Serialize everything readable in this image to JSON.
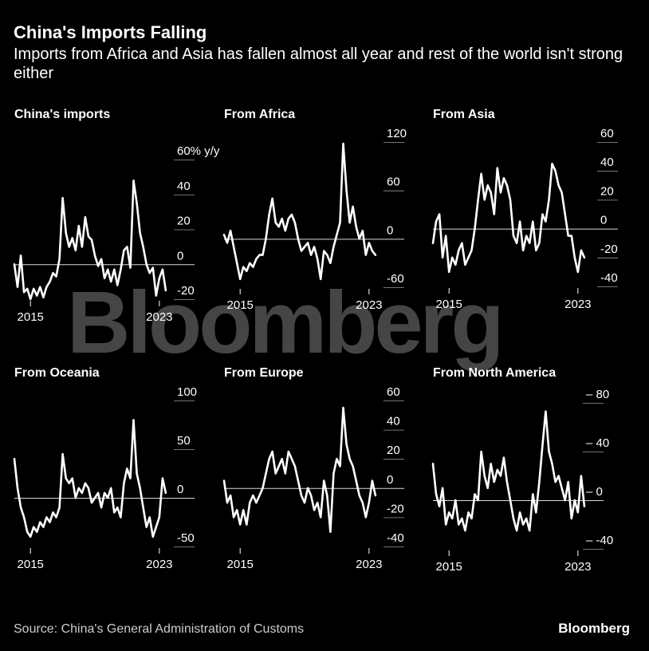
{
  "header": {
    "title": "China's Imports Falling",
    "subtitle": "Imports from Africa and Asia has fallen almost all year and rest of the world isn't strong either"
  },
  "footer": {
    "source": "Source: China's General Administration of Customs",
    "brand": "Bloomberg"
  },
  "watermark": "Bloomberg",
  "colors": {
    "background": "#000000",
    "line": "#ffffff",
    "grid": "#ffffff",
    "text": "#ffffff"
  },
  "chart_data": [
    {
      "type": "line",
      "title": "China's imports",
      "yunit": "% y/y",
      "yticks": [
        {
          "v": 60,
          "label": "60% y/y"
        },
        {
          "v": 40,
          "label": "40"
        },
        {
          "v": 20,
          "label": "20"
        },
        {
          "v": 0,
          "label": "0"
        },
        {
          "v": -20,
          "label": "-20"
        }
      ],
      "ylim": [
        -30,
        65
      ],
      "xlim": [
        2014.0,
        2023.75
      ],
      "xticks": [
        {
          "v": 2015,
          "label": "2015"
        },
        {
          "v": 2023,
          "label": "2023"
        }
      ],
      "x": [
        2014.0,
        2014.2,
        2014.4,
        2014.6,
        2014.8,
        2015.0,
        2015.2,
        2015.4,
        2015.6,
        2015.8,
        2016.0,
        2016.2,
        2016.4,
        2016.6,
        2016.8,
        2017.0,
        2017.2,
        2017.4,
        2017.6,
        2017.8,
        2018.0,
        2018.2,
        2018.4,
        2018.6,
        2018.8,
        2019.0,
        2019.2,
        2019.4,
        2019.6,
        2019.8,
        2020.0,
        2020.2,
        2020.4,
        2020.6,
        2020.8,
        2021.0,
        2021.2,
        2021.4,
        2021.6,
        2021.8,
        2022.0,
        2022.2,
        2022.4,
        2022.6,
        2022.8,
        2023.0,
        2023.2,
        2023.4
      ],
      "values": [
        0,
        -13,
        5,
        -16,
        -14,
        -20,
        -14,
        -18,
        -13,
        -19,
        -13,
        -10,
        -5,
        -7,
        3,
        38,
        18,
        10,
        15,
        8,
        22,
        10,
        27,
        16,
        14,
        5,
        -1,
        3,
        -8,
        -3,
        -10,
        -3,
        -12,
        -3,
        8,
        10,
        -2,
        48,
        35,
        18,
        10,
        0,
        -5,
        -2,
        -18,
        -8,
        -3,
        -15
      ]
    },
    {
      "type": "line",
      "title": "From Africa",
      "yticks": [
        {
          "v": 120,
          "label": "120"
        },
        {
          "v": 60,
          "label": "60"
        },
        {
          "v": 0,
          "label": "0"
        },
        {
          "v": -60,
          "label": "-60"
        }
      ],
      "ylim": [
        -70,
        130
      ],
      "xlim": [
        2014.0,
        2023.75
      ],
      "xticks": [
        {
          "v": 2015,
          "label": "2015"
        },
        {
          "v": 2023,
          "label": "2023"
        }
      ],
      "x": [
        2014.0,
        2014.2,
        2014.4,
        2014.6,
        2014.8,
        2015.0,
        2015.2,
        2015.4,
        2015.6,
        2015.8,
        2016.0,
        2016.2,
        2016.4,
        2016.6,
        2016.8,
        2017.0,
        2017.2,
        2017.4,
        2017.6,
        2017.8,
        2018.0,
        2018.2,
        2018.4,
        2018.6,
        2018.8,
        2019.0,
        2019.2,
        2019.4,
        2019.6,
        2019.8,
        2020.0,
        2020.2,
        2020.4,
        2020.6,
        2020.8,
        2021.0,
        2021.2,
        2021.4,
        2021.6,
        2021.8,
        2022.0,
        2022.2,
        2022.4,
        2022.6,
        2022.8,
        2023.0,
        2023.2,
        2023.4
      ],
      "values": [
        5,
        -5,
        10,
        -10,
        -30,
        -50,
        -35,
        -40,
        -30,
        -35,
        -25,
        -20,
        -20,
        0,
        30,
        50,
        20,
        15,
        25,
        10,
        25,
        30,
        20,
        0,
        -15,
        -10,
        -5,
        -20,
        -10,
        -25,
        -50,
        -15,
        -20,
        -30,
        -10,
        5,
        20,
        118,
        60,
        20,
        40,
        15,
        0,
        10,
        -20,
        -5,
        -15,
        -20
      ]
    },
    {
      "type": "line",
      "title": "From Asia",
      "yticks": [
        {
          "v": 60,
          "label": "60"
        },
        {
          "v": 40,
          "label": "40"
        },
        {
          "v": 20,
          "label": "20"
        },
        {
          "v": 0,
          "label": "0"
        },
        {
          "v": -20,
          "label": "-20"
        },
        {
          "v": -40,
          "label": "-40"
        }
      ],
      "ylim": [
        -45,
        65
      ],
      "xlim": [
        2014.0,
        2023.75
      ],
      "xticks": [
        {
          "v": 2015,
          "label": "2015"
        },
        {
          "v": 2023,
          "label": "2023"
        }
      ],
      "x": [
        2014.0,
        2014.2,
        2014.4,
        2014.6,
        2014.8,
        2015.0,
        2015.2,
        2015.4,
        2015.6,
        2015.8,
        2016.0,
        2016.2,
        2016.4,
        2016.6,
        2016.8,
        2017.0,
        2017.2,
        2017.4,
        2017.6,
        2017.8,
        2018.0,
        2018.2,
        2018.4,
        2018.6,
        2018.8,
        2019.0,
        2019.2,
        2019.4,
        2019.6,
        2019.8,
        2020.0,
        2020.2,
        2020.4,
        2020.6,
        2020.8,
        2021.0,
        2021.2,
        2021.4,
        2021.6,
        2021.8,
        2022.0,
        2022.2,
        2022.4,
        2022.6,
        2022.8,
        2023.0,
        2023.2,
        2023.4
      ],
      "values": [
        -10,
        5,
        10,
        -20,
        -5,
        -30,
        -20,
        -25,
        -15,
        -10,
        -25,
        -20,
        -15,
        0,
        20,
        38,
        20,
        30,
        25,
        10,
        42,
        25,
        35,
        30,
        20,
        -5,
        -10,
        5,
        -15,
        -5,
        -10,
        5,
        -15,
        -10,
        10,
        5,
        20,
        45,
        40,
        30,
        25,
        10,
        -5,
        -5,
        -20,
        -30,
        -15,
        -20
      ]
    },
    {
      "type": "line",
      "title": "From Oceania",
      "yticks": [
        {
          "v": 100,
          "label": "100"
        },
        {
          "v": 50,
          "label": "50"
        },
        {
          "v": 0,
          "label": "0"
        },
        {
          "v": -50,
          "label": "-50"
        }
      ],
      "ylim": [
        -55,
        110
      ],
      "xlim": [
        2014.0,
        2023.75
      ],
      "xticks": [
        {
          "v": 2015,
          "label": "2015"
        },
        {
          "v": 2023,
          "label": "2023"
        }
      ],
      "x": [
        2014.0,
        2014.2,
        2014.4,
        2014.6,
        2014.8,
        2015.0,
        2015.2,
        2015.4,
        2015.6,
        2015.8,
        2016.0,
        2016.2,
        2016.4,
        2016.6,
        2016.8,
        2017.0,
        2017.2,
        2017.4,
        2017.6,
        2017.8,
        2018.0,
        2018.2,
        2018.4,
        2018.6,
        2018.8,
        2019.0,
        2019.2,
        2019.4,
        2019.6,
        2019.8,
        2020.0,
        2020.2,
        2020.4,
        2020.6,
        2020.8,
        2021.0,
        2021.2,
        2021.4,
        2021.6,
        2021.8,
        2022.0,
        2022.2,
        2022.4,
        2022.6,
        2022.8,
        2023.0,
        2023.2,
        2023.4
      ],
      "values": [
        40,
        10,
        -10,
        -20,
        -35,
        -40,
        -30,
        -35,
        -25,
        -30,
        -20,
        -25,
        -15,
        -20,
        -10,
        45,
        20,
        15,
        20,
        0,
        10,
        5,
        15,
        10,
        -5,
        0,
        5,
        -10,
        5,
        0,
        10,
        -15,
        -10,
        -20,
        15,
        30,
        20,
        80,
        25,
        10,
        -10,
        -30,
        -20,
        -40,
        -30,
        -20,
        20,
        5
      ]
    },
    {
      "type": "line",
      "title": "From Europe",
      "yticks": [
        {
          "v": 60,
          "label": "60"
        },
        {
          "v": 40,
          "label": "40"
        },
        {
          "v": 20,
          "label": "20"
        },
        {
          "v": 0,
          "label": "0"
        },
        {
          "v": -20,
          "label": "-20"
        },
        {
          "v": -40,
          "label": "-40"
        }
      ],
      "ylim": [
        -45,
        65
      ],
      "xlim": [
        2014.0,
        2023.75
      ],
      "xticks": [
        {
          "v": 2015,
          "label": "2015"
        },
        {
          "v": 2023,
          "label": "2023"
        }
      ],
      "x": [
        2014.0,
        2014.2,
        2014.4,
        2014.6,
        2014.8,
        2015.0,
        2015.2,
        2015.4,
        2015.6,
        2015.8,
        2016.0,
        2016.2,
        2016.4,
        2016.6,
        2016.8,
        2017.0,
        2017.2,
        2017.4,
        2017.6,
        2017.8,
        2018.0,
        2018.2,
        2018.4,
        2018.6,
        2018.8,
        2019.0,
        2019.2,
        2019.4,
        2019.6,
        2019.8,
        2020.0,
        2020.2,
        2020.4,
        2020.6,
        2020.8,
        2021.0,
        2021.2,
        2021.4,
        2021.6,
        2021.8,
        2022.0,
        2022.2,
        2022.4,
        2022.6,
        2022.8,
        2023.0,
        2023.2,
        2023.4
      ],
      "values": [
        5,
        -10,
        -5,
        -20,
        -15,
        -25,
        -15,
        -25,
        -10,
        -5,
        -10,
        -5,
        0,
        10,
        20,
        25,
        10,
        15,
        20,
        10,
        25,
        20,
        15,
        5,
        -5,
        -10,
        0,
        -5,
        -15,
        -10,
        -20,
        5,
        -5,
        -30,
        10,
        20,
        15,
        55,
        30,
        20,
        15,
        5,
        -5,
        -10,
        -20,
        -10,
        5,
        -5
      ]
    },
    {
      "type": "line",
      "title": "From North America",
      "yticks": [
        {
          "v": 80,
          "label": "– 80"
        },
        {
          "v": 40,
          "label": "– 40"
        },
        {
          "v": 0,
          "label": "– 0"
        },
        {
          "v": -40,
          "label": "– -40"
        }
      ],
      "ylim": [
        -45,
        85
      ],
      "xlim": [
        2014.0,
        2023.75
      ],
      "xticks": [
        {
          "v": 2015,
          "label": "2015"
        },
        {
          "v": 2023,
          "label": "2023"
        }
      ],
      "x": [
        2014.0,
        2014.2,
        2014.4,
        2014.6,
        2014.8,
        2015.0,
        2015.2,
        2015.4,
        2015.6,
        2015.8,
        2016.0,
        2016.2,
        2016.4,
        2016.6,
        2016.8,
        2017.0,
        2017.2,
        2017.4,
        2017.6,
        2017.8,
        2018.0,
        2018.2,
        2018.4,
        2018.6,
        2018.8,
        2019.0,
        2019.2,
        2019.4,
        2019.6,
        2019.8,
        2020.0,
        2020.2,
        2020.4,
        2020.6,
        2020.8,
        2021.0,
        2021.2,
        2021.4,
        2021.6,
        2021.8,
        2022.0,
        2022.2,
        2022.4,
        2022.6,
        2022.8,
        2023.0,
        2023.2,
        2023.4
      ],
      "values": [
        30,
        5,
        -5,
        10,
        -20,
        -10,
        -15,
        0,
        -20,
        -15,
        -25,
        -10,
        -15,
        5,
        0,
        40,
        20,
        10,
        30,
        15,
        25,
        20,
        35,
        15,
        0,
        -15,
        -25,
        -10,
        -20,
        -15,
        -25,
        5,
        -10,
        15,
        45,
        73,
        40,
        30,
        15,
        20,
        10,
        0,
        15,
        -15,
        0,
        -10,
        20,
        -5
      ]
    }
  ]
}
